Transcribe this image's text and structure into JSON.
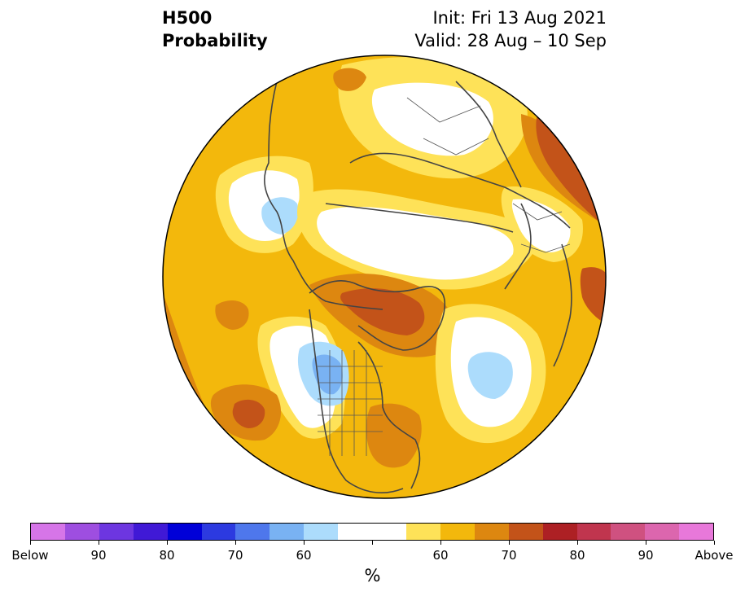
{
  "title": {
    "left_line1": "H500",
    "left_line2": "Probability",
    "right_line1": "Init: Fri 13 Aug 2021",
    "right_line2": "Valid: 28 Aug – 10 Sep"
  },
  "colorbar": {
    "unit": "%",
    "colors": [
      "#d675e8",
      "#9e4ee0",
      "#6d36e0",
      "#4019d6",
      "#0000d8",
      "#2c3ae0",
      "#4e77ec",
      "#79b2f3",
      "#acdcfc",
      "#ffffff",
      "#ffffff",
      "#fee258",
      "#f3b80c",
      "#dd8710",
      "#c35319",
      "#ad2024",
      "#c0354e",
      "#cf5180",
      "#dc66ae",
      "#e878da"
    ],
    "labels": [
      "Below",
      "90",
      "80",
      "70",
      "60",
      "",
      "",
      "60",
      "70",
      "80",
      "90",
      "Above"
    ]
  },
  "map": {
    "projection": "north-polar-stereographic",
    "regions": [
      {
        "name": "background-above-50",
        "color": "#f3b80c"
      },
      {
        "name": "west-pacific-edge",
        "color": "#dd8710"
      },
      {
        "name": "asia-above-55",
        "color": "#fee258"
      },
      {
        "name": "siberia-near-normal",
        "color": "#ffffff"
      },
      {
        "name": "far-east-russia-above-65",
        "color": "#dd8710"
      },
      {
        "name": "east-asia-near-normal",
        "color": "#ffffff"
      },
      {
        "name": "japan-below-55",
        "color": "#acdcfc"
      },
      {
        "name": "arctic-near-normal",
        "color": "#ffffff"
      },
      {
        "name": "greenland-above-70",
        "color": "#dd8710"
      },
      {
        "name": "canada-arctic-above-75",
        "color": "#c35319"
      },
      {
        "name": "western-north-america-near-normal",
        "color": "#ffffff"
      },
      {
        "name": "western-north-america-below-55",
        "color": "#acdcfc"
      },
      {
        "name": "western-north-america-below-65",
        "color": "#79b2f3"
      },
      {
        "name": "atlantic-near-normal",
        "color": "#ffffff"
      },
      {
        "name": "atlantic-below-55",
        "color": "#acdcfc"
      },
      {
        "name": "southeast-us-above-65",
        "color": "#dd8710"
      },
      {
        "name": "europe-above-75",
        "color": "#c35319"
      },
      {
        "name": "scandinavia-near-normal",
        "color": "#ffffff"
      },
      {
        "name": "pacific-above-65",
        "color": "#dd8710"
      },
      {
        "name": "pacific-above-75",
        "color": "#c35319"
      }
    ]
  }
}
